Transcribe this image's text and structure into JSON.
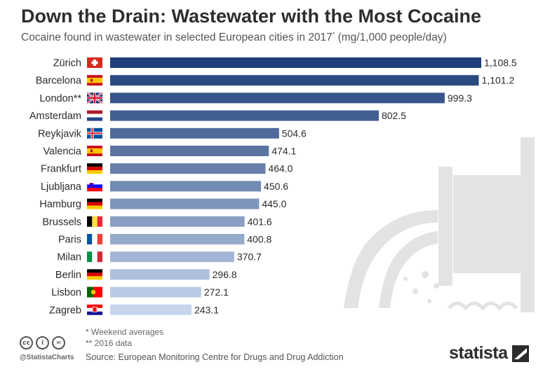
{
  "header": {
    "title": "Down the Drain: Wastewater with the Most Cocaine",
    "subtitle": "Cocaine found in wastewater in selected European cities in 2017",
    "subtitle_marker": "*",
    "subtitle_unit": "(mg/1,000 people/day)"
  },
  "chart_data": {
    "type": "bar",
    "orientation": "horizontal",
    "categories": [
      "Zürich",
      "Barcelona",
      "London**",
      "Amsterdam",
      "Reykjavik",
      "Valencia",
      "Frankfurt",
      "Ljubljana",
      "Hamburg",
      "Brussels",
      "Paris",
      "Milan",
      "Berlin",
      "Lisbon",
      "Zagreb"
    ],
    "values": [
      1108.5,
      1101.2,
      999.3,
      802.5,
      504.6,
      474.1,
      464.0,
      450.6,
      445.0,
      401.6,
      400.8,
      370.7,
      296.8,
      272.1,
      243.1
    ],
    "value_labels": [
      "1,108.5",
      "1,101.2",
      "999.3",
      "802.5",
      "504.6",
      "474.1",
      "464.0",
      "450.6",
      "445.0",
      "401.6",
      "400.8",
      "370.7",
      "296.8",
      "272.1",
      "243.1"
    ],
    "flags": [
      "switzerland",
      "spain",
      "united-kingdom",
      "netherlands",
      "iceland",
      "spain",
      "germany",
      "slovenia",
      "germany",
      "belgium",
      "france",
      "italy",
      "germany",
      "portugal",
      "croatia"
    ],
    "xlim": [
      0,
      1108.5
    ],
    "bar_color_dark": "#1f3f7a",
    "bar_color_light": "#c6d5ec",
    "grid": false,
    "legend": "none"
  },
  "notes": {
    "line1": "*  Weekend averages",
    "line2": "** 2016 data"
  },
  "source": "Source: European Monitoring Centre for Drugs and Drug Addiction",
  "footer": {
    "handle": "@StatistaCharts",
    "brand": "statista"
  },
  "colors": {
    "bar_dark": "#1f3f7a",
    "bar_light": "#c6d5ec",
    "illustration": "#e3e3e3"
  }
}
